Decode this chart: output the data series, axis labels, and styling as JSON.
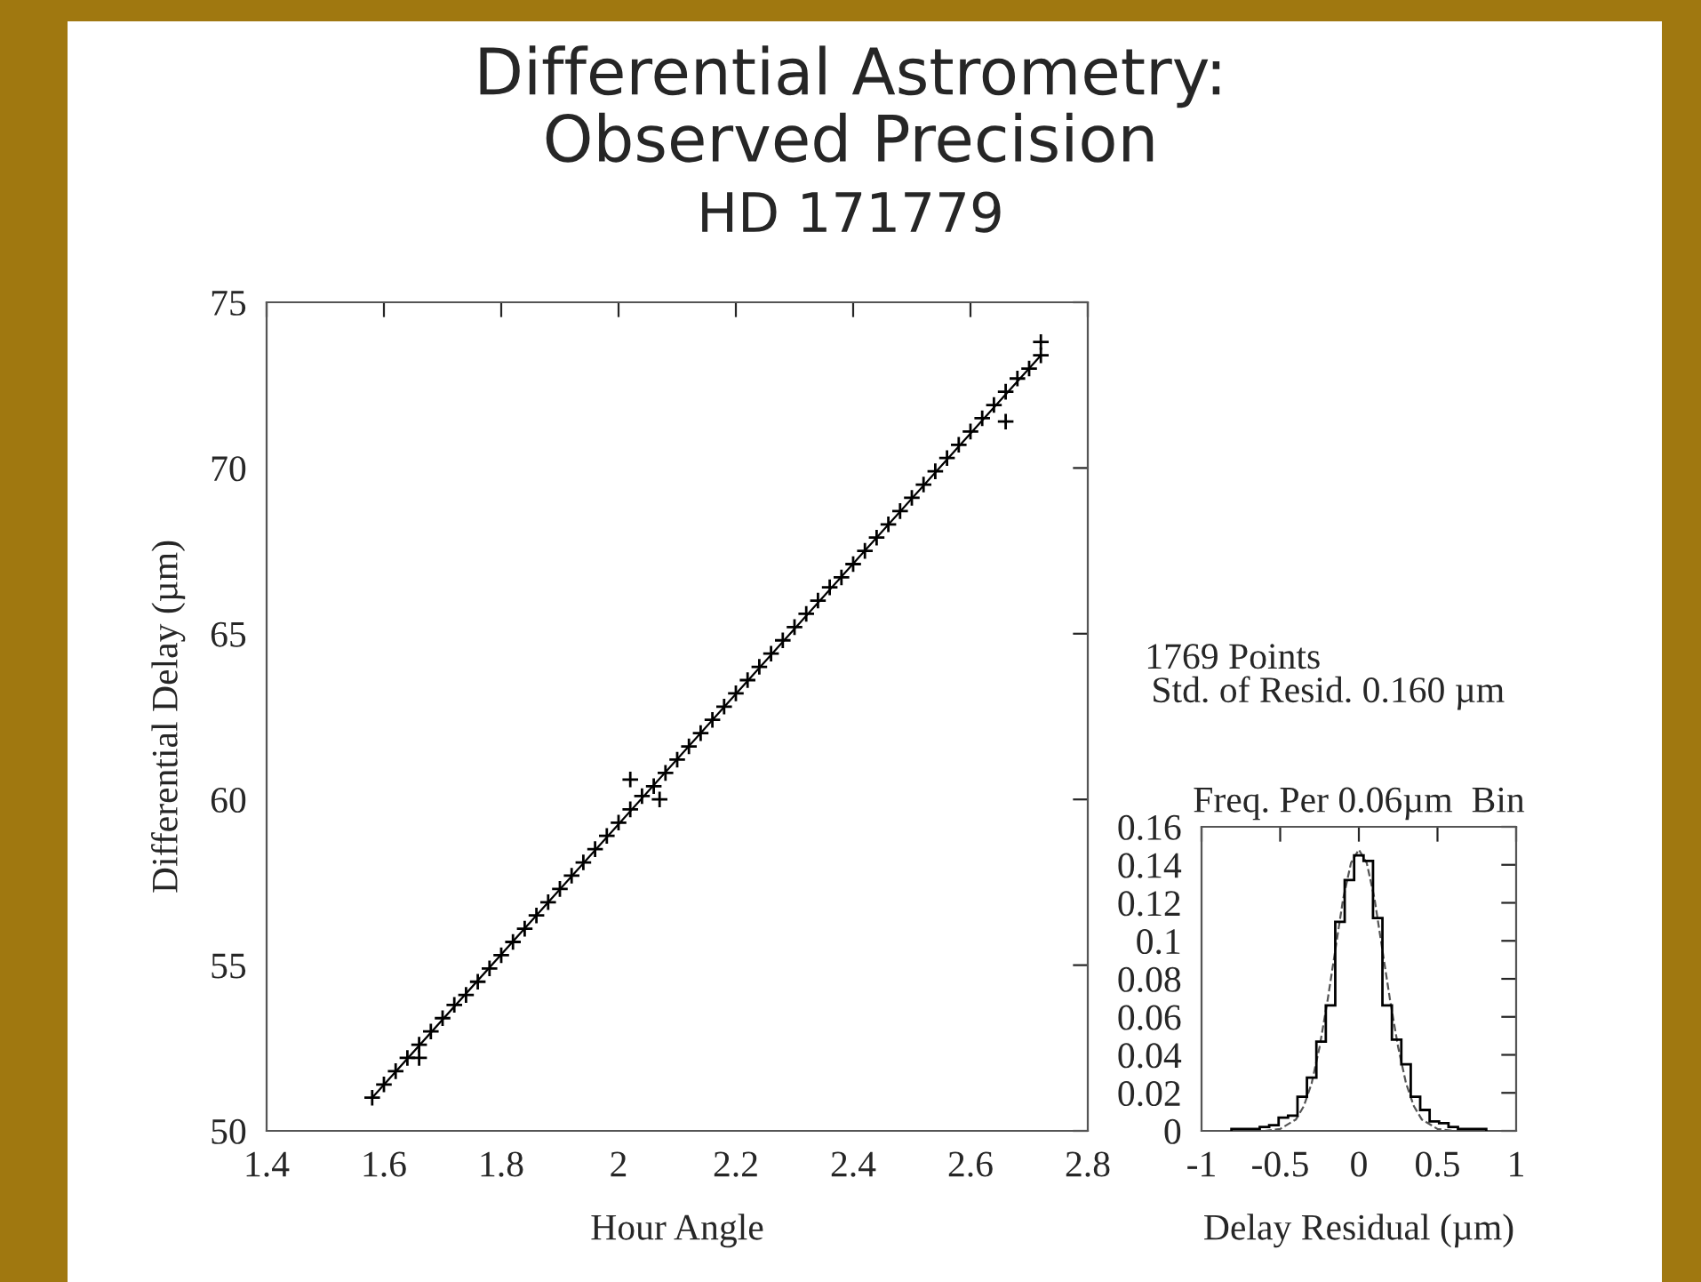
{
  "chart_data": [
    {
      "type": "scatter",
      "title": "Differential Astrometry:\nObserved Precision",
      "subtitle": "HD 171779",
      "xlabel": "Hour Angle",
      "ylabel": "Differential Delay (µm)",
      "xlim": [
        1.4,
        2.8
      ],
      "xticks": [
        1.4,
        1.6,
        1.8,
        2,
        2.2,
        2.4,
        2.6,
        2.8
      ],
      "ylim": [
        50,
        75
      ],
      "yticks": [
        50,
        55,
        60,
        65,
        70,
        75
      ],
      "grid": false,
      "legend": false,
      "series": [
        {
          "color": "#000000",
          "marker": "cross",
          "x": [
            1.58,
            1.6,
            1.62,
            1.64,
            1.66,
            1.68,
            1.7,
            1.72,
            1.74,
            1.76,
            1.78,
            1.8,
            1.82,
            1.84,
            1.86,
            1.88,
            1.9,
            1.92,
            1.94,
            1.96,
            1.98,
            2.0,
            2.02,
            2.04,
            2.06,
            2.08,
            2.1,
            2.12,
            2.14,
            2.16,
            2.18,
            2.2,
            2.22,
            2.24,
            2.26,
            2.28,
            2.3,
            2.32,
            2.34,
            2.36,
            2.38,
            2.4,
            2.42,
            2.44,
            2.46,
            2.48,
            2.5,
            2.52,
            2.54,
            2.56,
            2.58,
            2.6,
            2.62,
            2.64,
            2.66,
            2.68,
            2.7,
            2.72,
            2.07,
            2.02,
            1.66,
            2.66,
            2.72
          ],
          "values": [
            51.0,
            51.4,
            51.8,
            52.2,
            52.6,
            53.0,
            53.4,
            53.8,
            54.1,
            54.5,
            54.9,
            55.3,
            55.7,
            56.1,
            56.5,
            56.9,
            57.3,
            57.7,
            58.1,
            58.5,
            58.9,
            59.3,
            59.7,
            60.1,
            60.4,
            60.8,
            61.2,
            61.6,
            62.0,
            62.4,
            62.8,
            63.2,
            63.6,
            64.0,
            64.4,
            64.8,
            65.2,
            65.6,
            66.0,
            66.4,
            66.7,
            67.1,
            67.5,
            67.9,
            68.3,
            68.7,
            69.1,
            69.5,
            69.9,
            70.3,
            70.7,
            71.1,
            71.5,
            71.9,
            72.3,
            72.7,
            73.0,
            73.4,
            60.0,
            60.6,
            52.2,
            71.4,
            73.8
          ]
        },
        {
          "type": "line",
          "color": "#000000",
          "line_style": "solid",
          "x": [
            1.58,
            2.72
          ],
          "values": [
            51.0,
            73.4
          ]
        }
      ]
    },
    {
      "type": "histogram",
      "title": "Freq. Per 0.06µm  Bin",
      "xlabel": "Delay Residual (µm)",
      "annotations": [
        "1769 Points",
        "Std. of Resid. 0.160 µm"
      ],
      "xlim": [
        -1,
        1
      ],
      "xticks": [
        -1,
        -0.5,
        0,
        0.5,
        1
      ],
      "ylim": [
        0,
        0.16
      ],
      "yticks": [
        0,
        0.02,
        0.04,
        0.06,
        0.08,
        0.1,
        0.12,
        0.14,
        0.16
      ],
      "grid": false,
      "legend": false,
      "color": "#000000",
      "bins": [
        -0.81,
        -0.75,
        -0.69,
        -0.63,
        -0.57,
        -0.51,
        -0.45,
        -0.39,
        -0.33,
        -0.27,
        -0.21,
        -0.15,
        -0.09,
        -0.03,
        0.03,
        0.09,
        0.15,
        0.21,
        0.27,
        0.33,
        0.39,
        0.45,
        0.51,
        0.57,
        0.63,
        0.69,
        0.75,
        0.81
      ],
      "values": [
        0.001,
        0.001,
        0.001,
        0.002,
        0.003,
        0.007,
        0.008,
        0.018,
        0.028,
        0.047,
        0.066,
        0.11,
        0.132,
        0.145,
        0.142,
        0.112,
        0.066,
        0.048,
        0.035,
        0.018,
        0.011,
        0.005,
        0.004,
        0.002,
        0.001,
        0.001,
        0.001
      ],
      "series": [
        {
          "type": "line",
          "color": "#555555",
          "line_style": "dashed",
          "x": [
            -0.6,
            -0.5,
            -0.4,
            -0.35,
            -0.3,
            -0.25,
            -0.2,
            -0.15,
            -0.1,
            -0.05,
            0,
            0.05,
            0.1,
            0.15,
            0.2,
            0.25,
            0.3,
            0.35,
            0.4,
            0.5,
            0.6
          ],
          "values": [
            0,
            0.001,
            0.006,
            0.013,
            0.025,
            0.044,
            0.068,
            0.095,
            0.122,
            0.141,
            0.148,
            0.141,
            0.122,
            0.095,
            0.068,
            0.044,
            0.025,
            0.013,
            0.006,
            0.001,
            0
          ]
        }
      ]
    }
  ]
}
